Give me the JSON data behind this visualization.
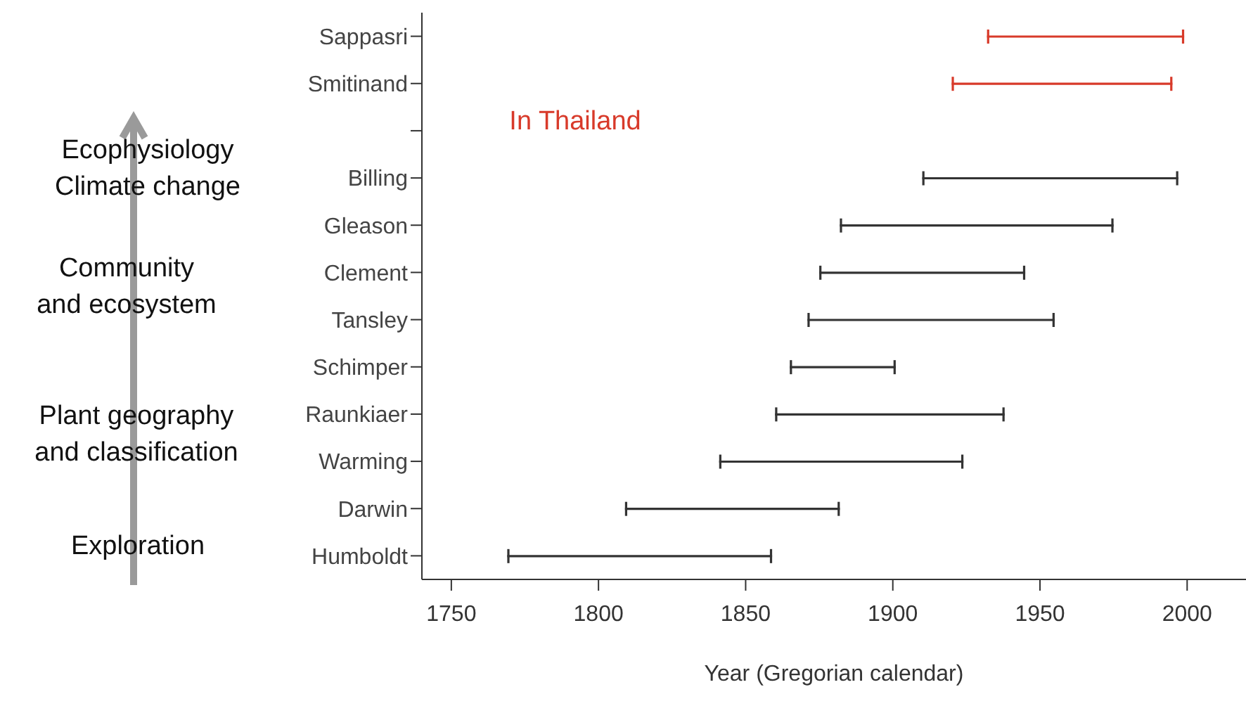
{
  "chart_data": {
    "type": "bar",
    "orientation": "horizontal",
    "categories": [
      "Sappasri",
      "Smitinand",
      null,
      "Billing",
      "Gleason",
      "Clement",
      "Tansley",
      "Schimper",
      "Raunkiaer",
      "Warming",
      "Darwin",
      "Humboldt"
    ],
    "base": [
      1932,
      1920,
      null,
      1910,
      1882,
      1875,
      1871,
      1865,
      1860,
      1841,
      1809,
      1769
    ],
    "values": [
      67,
      75,
      null,
      87,
      93,
      70,
      84,
      36,
      78,
      83,
      73,
      90
    ],
    "colors": [
      "#d83a2a",
      "#d83a2a",
      null,
      "#333333",
      "#333333",
      "#333333",
      "#333333",
      "#333333",
      "#333333",
      "#333333",
      "#333333",
      "#333333"
    ],
    "xlim": [
      1740,
      2020
    ],
    "xticks": [
      1750,
      1800,
      1850,
      1900,
      1950,
      2000
    ],
    "xlabel": "Year (Gregorian calendar)",
    "annotations": [
      "In Thailand",
      "Ecophysiology\nClimate change",
      "Community\nand ecosystem",
      "Plant geography\nand classification",
      "Exploration"
    ]
  }
}
